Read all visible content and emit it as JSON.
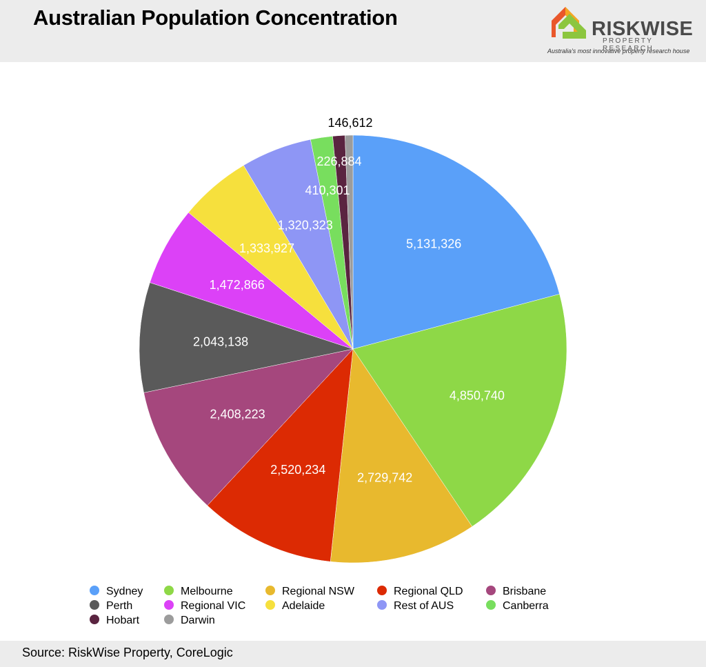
{
  "header": {
    "title": "Australian Population Concentration",
    "logo": {
      "name": "RISKWISE",
      "subtitle": "PROPERTY RESEARCH",
      "tagline": "Australia's most innovative property research house",
      "colors": [
        "#e9572b",
        "#f5a623",
        "#8cc63f"
      ]
    }
  },
  "chart_data": {
    "type": "pie",
    "title": "Australian Population Concentration",
    "start": "12 o'clock",
    "direction": "clockwise",
    "legend_position": "bottom",
    "slices": [
      {
        "label": "Sydney",
        "value": 5131326,
        "value_label": "5,131,326",
        "color": "#5aa0f9"
      },
      {
        "label": "Melbourne",
        "value": 4850740,
        "value_label": "4,850,740",
        "color": "#8ed847"
      },
      {
        "label": "Regional NSW",
        "value": 2729742,
        "value_label": "2,729,742",
        "color": "#e8b92e"
      },
      {
        "label": "Regional QLD",
        "value": 2520234,
        "value_label": "2,520,234",
        "color": "#dc2a03"
      },
      {
        "label": "Brisbane",
        "value": 2408223,
        "value_label": "2,408,223",
        "color": "#a5477d"
      },
      {
        "label": "Perth",
        "value": 2043138,
        "value_label": "2,043,138",
        "color": "#5a5a5a"
      },
      {
        "label": "Regional VIC",
        "value": 1472866,
        "value_label": "1,472,866",
        "color": "#dc41f7"
      },
      {
        "label": "Adelaide",
        "value": 1333927,
        "value_label": "1,333,927",
        "color": "#f6e03d"
      },
      {
        "label": "Rest of AUS",
        "value": 1320323,
        "value_label": "1,320,323",
        "color": "#8e96f5"
      },
      {
        "label": "Canberra",
        "value": 410301,
        "value_label": "410,301",
        "color": "#78de5e"
      },
      {
        "label": "Hobart",
        "value": 226884,
        "value_label": "226,884",
        "color": "#5a2440"
      },
      {
        "label": "Darwin",
        "value": 146612,
        "value_label": "146,612",
        "color": "#9c9c9c"
      }
    ]
  },
  "footer": {
    "source": "Source: RiskWise Property, CoreLogic"
  }
}
